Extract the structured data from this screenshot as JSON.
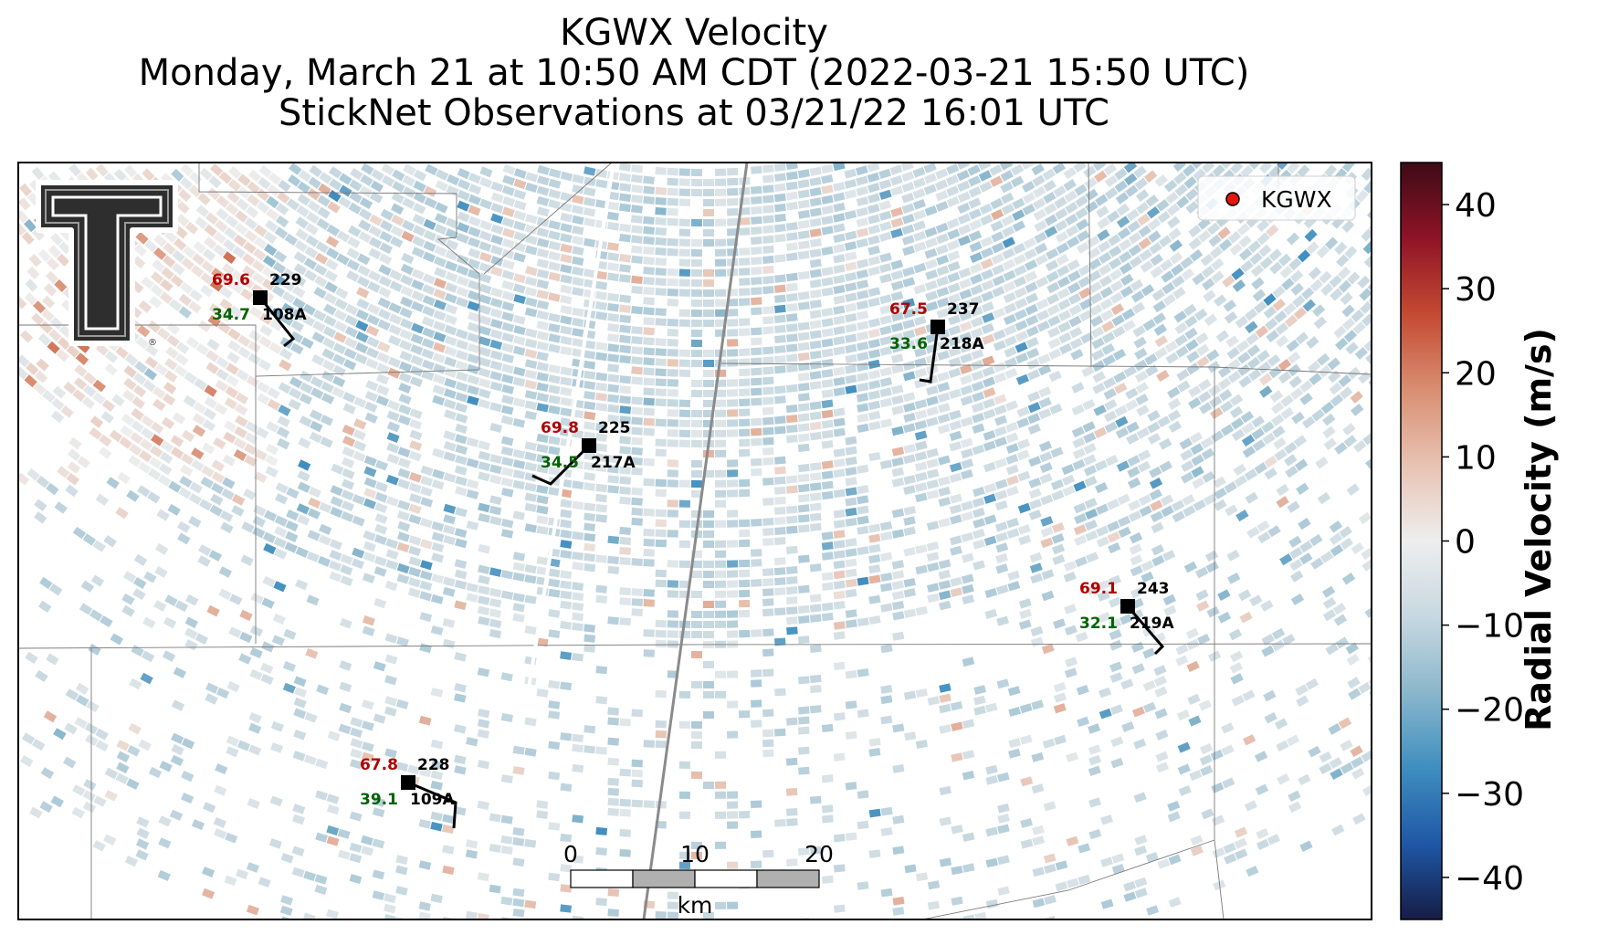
{
  "title": {
    "line1": "KGWX Velocity",
    "line2": "Monday, March 21 at 10:50 AM CDT (2022-03-21 15:50 UTC)",
    "line3": "StickNet Observations at 03/21/22 16:01 UTC"
  },
  "legend": {
    "label": "KGWX",
    "marker_color": "#e8140f",
    "placement": "top-right"
  },
  "logo": {
    "icon": "texas-tech-double-t-logo",
    "registered": "®"
  },
  "stations": [
    {
      "id": "108A",
      "temperature": "69.6",
      "dewpoint": "34.7",
      "pressure": "229"
    },
    {
      "id": "217A",
      "temperature": "69.8",
      "dewpoint": "34.5",
      "pressure": "225"
    },
    {
      "id": "218A",
      "temperature": "67.5",
      "dewpoint": "33.6",
      "pressure": "237"
    },
    {
      "id": "219A",
      "temperature": "69.1",
      "dewpoint": "32.1",
      "pressure": "243"
    },
    {
      "id": "109A",
      "temperature": "67.8",
      "dewpoint": "39.1",
      "pressure": "228"
    }
  ],
  "scale_bar": {
    "ticks": [
      "0",
      "10",
      "20"
    ],
    "unit": "km"
  },
  "colorbar": {
    "label": "Radial Velocity (m/s)",
    "range": [
      -45,
      45
    ],
    "ticks": [
      40,
      30,
      20,
      10,
      0,
      -10,
      -20,
      -30,
      -40
    ],
    "tick_labels": [
      "40",
      "30",
      "20",
      "10",
      "0",
      "−10",
      "−20",
      "−30",
      "−40"
    ]
  },
  "colors": {
    "temperature": "#b00000",
    "dewpoint": "#006400",
    "velocity_stops": [
      "#161d45",
      "#1f57a6",
      "#3f8ec0",
      "#8ab7cc",
      "#c7d8e0",
      "#eeeeee",
      "#e8c3b3",
      "#d98e72",
      "#c44a32",
      "#8f1327",
      "#3d0b15"
    ]
  }
}
